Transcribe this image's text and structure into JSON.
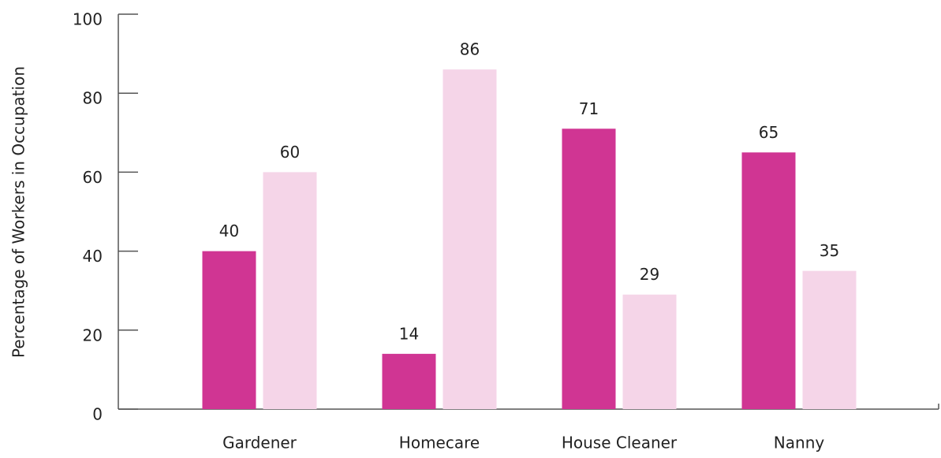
{
  "chart_data": {
    "type": "bar",
    "y_label": "Percentage of Workers in Occupation",
    "categories": [
      "Gardener",
      "Homecare",
      "House Cleaner",
      "Nanny"
    ],
    "series": [
      {
        "color": "#d03593",
        "values": [
          40,
          14,
          71,
          65
        ]
      },
      {
        "color": "#f5d5e8",
        "values": [
          60,
          86,
          29,
          35
        ]
      }
    ],
    "ylim": [
      0,
      100
    ],
    "yticks": [
      0,
      20,
      40,
      60,
      80,
      100
    ],
    "grid": false
  }
}
